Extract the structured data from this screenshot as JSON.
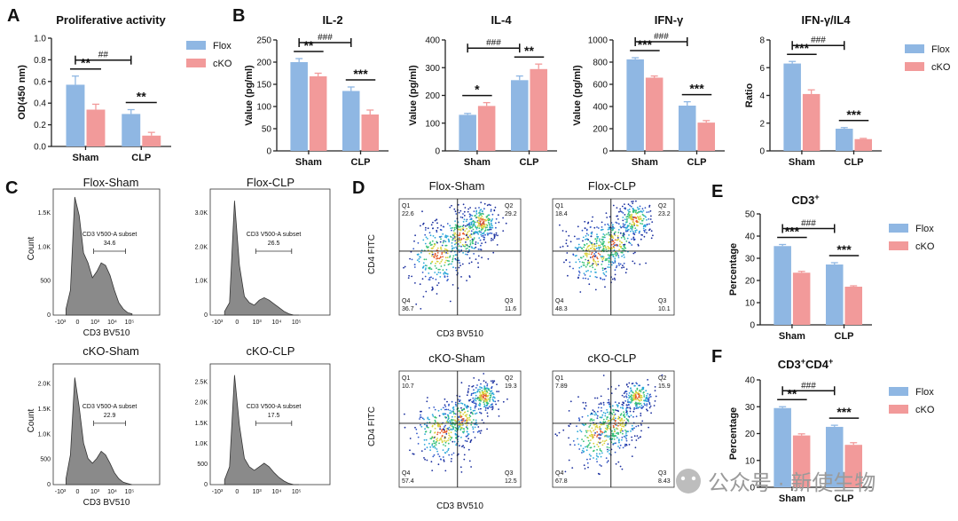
{
  "colors": {
    "flox": "#8fb7e3",
    "cko": "#f29a9a",
    "axis": "#222222",
    "hist": "#8a8a8a"
  },
  "panels": {
    "A": "A",
    "B": "B",
    "C": "C",
    "D": "D",
    "E": "E",
    "F": "F"
  },
  "legend": {
    "flox": "Flox",
    "cko": "cKO"
  },
  "chart_data": [
    {
      "id": "A",
      "type": "bar",
      "title": "Proliferative activity",
      "ylabel": "OD(450 nm)",
      "ylim": [
        0,
        1.0
      ],
      "yticks": [
        0.0,
        0.2,
        0.4,
        0.6,
        0.8,
        1.0
      ],
      "ytick_labels": [
        "0.0",
        "0.2",
        "0.4",
        "0.6",
        "0.8",
        "1.0"
      ],
      "categories": [
        "Sham",
        "CLP"
      ],
      "series": [
        {
          "name": "Flox",
          "values": [
            0.57,
            0.3
          ],
          "errors": [
            0.08,
            0.04
          ]
        },
        {
          "name": "cKO",
          "values": [
            0.34,
            0.1
          ],
          "errors": [
            0.05,
            0.03
          ]
        }
      ],
      "sig_within": [
        "**",
        "**"
      ],
      "sig_between": "##"
    },
    {
      "id": "B1",
      "type": "bar",
      "title": "IL-2",
      "ylabel": "Value (pg/ml)",
      "ylim": [
        0,
        250
      ],
      "yticks": [
        0,
        50,
        100,
        150,
        200,
        250
      ],
      "ytick_labels": [
        "0",
        "50",
        "100",
        "150",
        "200",
        "250"
      ],
      "categories": [
        "Sham",
        "CLP"
      ],
      "series": [
        {
          "name": "Flox",
          "values": [
            200,
            135
          ],
          "errors": [
            8,
            9
          ]
        },
        {
          "name": "cKO",
          "values": [
            168,
            82
          ],
          "errors": [
            7,
            10
          ]
        }
      ],
      "sig_within": [
        "**",
        "***"
      ],
      "sig_between": "###"
    },
    {
      "id": "B2",
      "type": "bar",
      "title": "IL-4",
      "ylabel": "Value (pg/ml)",
      "ylim": [
        0,
        400
      ],
      "yticks": [
        0,
        100,
        200,
        300,
        400
      ],
      "ytick_labels": [
        "0",
        "100",
        "200",
        "300",
        "400"
      ],
      "categories": [
        "Sham",
        "CLP"
      ],
      "series": [
        {
          "name": "Flox",
          "values": [
            130,
            255
          ],
          "errors": [
            5,
            15
          ]
        },
        {
          "name": "cKO",
          "values": [
            162,
            295
          ],
          "errors": [
            12,
            18
          ]
        }
      ],
      "sig_within": [
        "*",
        "**"
      ],
      "sig_between": "###"
    },
    {
      "id": "B3",
      "type": "bar",
      "title": "IFN-γ",
      "ylabel": "Value (pg/ml)",
      "ylim": [
        0,
        1000
      ],
      "yticks": [
        0,
        200,
        400,
        600,
        800,
        1000
      ],
      "ytick_labels": [
        "0",
        "200",
        "400",
        "600",
        "800",
        "1000"
      ],
      "categories": [
        "Sham",
        "CLP"
      ],
      "series": [
        {
          "name": "Flox",
          "values": [
            825,
            408
          ],
          "errors": [
            15,
            35
          ]
        },
        {
          "name": "cKO",
          "values": [
            660,
            255
          ],
          "errors": [
            15,
            18
          ]
        }
      ],
      "sig_within": [
        "***",
        "***"
      ],
      "sig_between": "###"
    },
    {
      "id": "B4",
      "type": "bar",
      "title": "IFN-γ/IL4",
      "ylabel": "Ratio",
      "ylim": [
        0,
        8
      ],
      "yticks": [
        0,
        2,
        4,
        6,
        8
      ],
      "ytick_labels": [
        "0",
        "2",
        "4",
        "6",
        "8"
      ],
      "categories": [
        "Sham",
        "CLP"
      ],
      "series": [
        {
          "name": "Flox",
          "values": [
            6.3,
            1.6
          ],
          "errors": [
            0.15,
            0.08
          ]
        },
        {
          "name": "cKO",
          "values": [
            4.1,
            0.85
          ],
          "errors": [
            0.3,
            0.05
          ]
        }
      ],
      "sig_within": [
        "***",
        "***"
      ],
      "sig_between": "###"
    },
    {
      "id": "E",
      "type": "bar",
      "title": "CD3",
      "title_sup": "+",
      "ylabel": "Percentage",
      "ylim": [
        0,
        50
      ],
      "yticks": [
        0,
        10,
        20,
        30,
        40,
        50
      ],
      "ytick_labels": [
        "0",
        "10",
        "20",
        "30",
        "40",
        "50"
      ],
      "categories": [
        "Sham",
        "CLP"
      ],
      "series": [
        {
          "name": "Flox",
          "values": [
            35.5,
            27.2
          ],
          "errors": [
            0.7,
            0.8
          ]
        },
        {
          "name": "cKO",
          "values": [
            23.5,
            17.2
          ],
          "errors": [
            0.6,
            0.4
          ]
        }
      ],
      "sig_within": [
        "***",
        "***"
      ],
      "sig_between": "###"
    },
    {
      "id": "F",
      "type": "bar",
      "title": "CD3",
      "title_sup": "+",
      "title_mid": "CD4",
      "title_sup2": "+",
      "ylabel": "Percentage",
      "ylim": [
        0,
        40
      ],
      "yticks": [
        0,
        10,
        20,
        30,
        40
      ],
      "ytick_labels": [
        "0",
        "10",
        "20",
        "30",
        "40"
      ],
      "categories": [
        "Sham",
        "CLP"
      ],
      "series": [
        {
          "name": "Flox",
          "values": [
            29.5,
            22.5
          ],
          "errors": [
            0.5,
            0.6
          ]
        },
        {
          "name": "cKO",
          "values": [
            19.3,
            15.8
          ],
          "errors": [
            0.6,
            0.8
          ]
        }
      ],
      "sig_within": [
        "**",
        "***"
      ],
      "sig_between": "###"
    }
  ],
  "histograms": [
    {
      "id": "C1",
      "title": "Flox-Sham",
      "gate": "CD3 V500-A subset",
      "value": "34.6",
      "yticks": [
        "0",
        "500",
        "1.0K",
        "1.5K"
      ],
      "xlabel": "CD3 BV510",
      "ylabel": "Count"
    },
    {
      "id": "C2",
      "title": "Flox-CLP",
      "gate": "CD3 V500-A subset",
      "value": "26.5",
      "yticks": [
        "0",
        "1.0K",
        "2.0K",
        "3.0K"
      ],
      "xlabel": "",
      "ylabel": ""
    },
    {
      "id": "C3",
      "title": "cKO-Sham",
      "gate": "CD3 V500-A subset",
      "value": "22.9",
      "yticks": [
        "0",
        "500",
        "1.0K",
        "1.5K",
        "2.0K"
      ],
      "xlabel": "CD3 BV510",
      "ylabel": "Count"
    },
    {
      "id": "C4",
      "title": "cKO-CLP",
      "gate": "CD3 V500-A subset",
      "value": "17.5",
      "yticks": [
        "0",
        "500",
        "1.0K",
        "1.5K",
        "2.0K",
        "2.5K"
      ],
      "xlabel": "",
      "ylabel": ""
    }
  ],
  "hist_xticks": [
    "-10³",
    "0",
    "10³",
    "10⁴",
    "10⁵"
  ],
  "scatters": [
    {
      "id": "D1",
      "title": "Flox-Sham",
      "q1": "22.6",
      "q2": "29.2",
      "q3": "11.6",
      "q4": "36.7",
      "xlabel": "CD3 BV510",
      "ylabel": "CD4 FITC"
    },
    {
      "id": "D2",
      "title": "Flox-CLP",
      "q1": "18.4",
      "q2": "23.2",
      "q3": "10.1",
      "q4": "48.3",
      "xlabel": "",
      "ylabel": ""
    },
    {
      "id": "D3",
      "title": "cKO-Sham",
      "q1": "10.7",
      "q2": "19.3",
      "q3": "12.5",
      "q4": "57.4",
      "xlabel": "CD3 BV510",
      "ylabel": "CD4 FITC"
    },
    {
      "id": "D4",
      "title": "cKO-CLP",
      "q1": "7.89",
      "q2": "15.9",
      "q3": "8.43",
      "q4": "67.8",
      "xlabel": "",
      "ylabel": ""
    }
  ],
  "quadrant_labels": {
    "q1": "Q1",
    "q2": "Q2",
    "q3": "Q3",
    "q4": "Q4"
  },
  "watermark": "公众号 · 新使生物"
}
